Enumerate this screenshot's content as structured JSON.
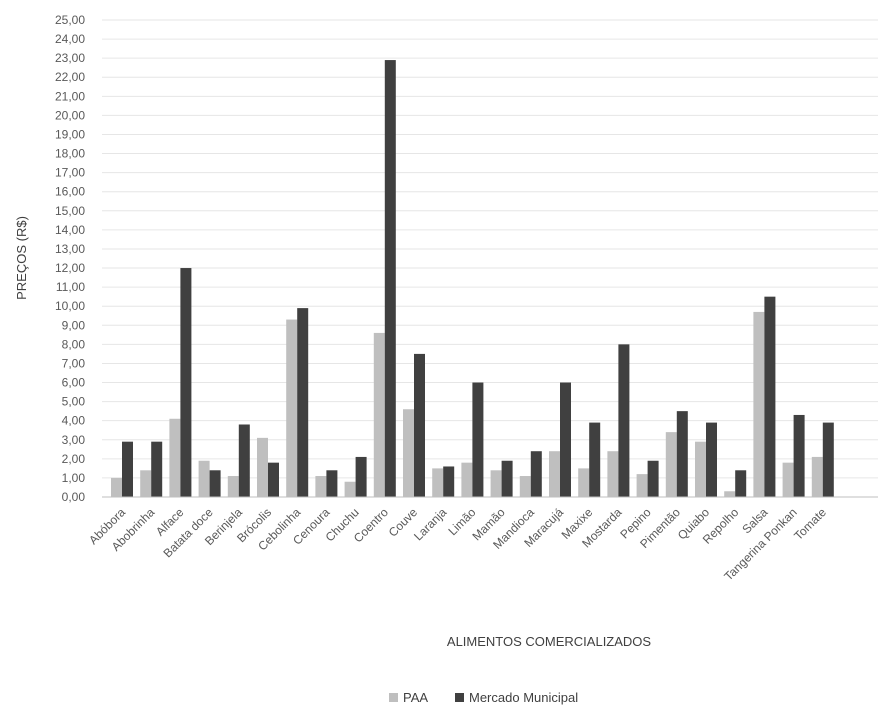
{
  "chart_data": {
    "type": "bar",
    "title": "",
    "xlabel": "ALIMENTOS COMERCIALIZADOS",
    "ylabel": "PREÇOS (R$)",
    "ylim": [
      0,
      25
    ],
    "ytick_step": 1,
    "ytick_labels": [
      "0,00",
      "1,00",
      "2,00",
      "3,00",
      "4,00",
      "5,00",
      "6,00",
      "7,00",
      "8,00",
      "9,00",
      "10,00",
      "11,00",
      "12,00",
      "13,00",
      "14,00",
      "15,00",
      "16,00",
      "17,00",
      "18,00",
      "19,00",
      "20,00",
      "21,00",
      "22,00",
      "23,00",
      "24,00",
      "25,00"
    ],
    "grid": true,
    "legend_position": "bottom",
    "categories": [
      "Abóbora",
      "Abobrinha",
      "Alface",
      "Batata doce",
      "Berinjela",
      "Brócolis",
      "Cebolinha",
      "Cenoura",
      "Chuchu",
      "Coentro",
      "Couve",
      "Laranja",
      "Limão",
      "Mamão",
      "Mandioca",
      "Maracujá",
      "Maxixe",
      "Mostarda",
      "Pepino",
      "Pimentão",
      "Quiabo",
      "Repolho",
      "Salsa",
      "Tangerina Ponkan",
      "Tomate"
    ],
    "series": [
      {
        "name": "PAA",
        "color": "#bfbfbf",
        "values": [
          1.0,
          1.4,
          4.1,
          1.9,
          1.1,
          3.1,
          9.3,
          1.1,
          0.8,
          8.6,
          4.6,
          1.5,
          1.8,
          1.4,
          1.1,
          2.4,
          1.5,
          2.4,
          1.2,
          3.4,
          2.9,
          0.3,
          9.7,
          1.8,
          2.1
        ]
      },
      {
        "name": "Mercado Municipal",
        "color": "#404040",
        "values": [
          2.9,
          2.9,
          12.0,
          1.4,
          3.8,
          1.8,
          9.9,
          1.4,
          2.1,
          22.9,
          7.5,
          1.6,
          6.0,
          1.9,
          2.4,
          6.0,
          3.9,
          8.0,
          1.9,
          4.5,
          3.9,
          1.4,
          10.5,
          4.3,
          3.9
        ]
      }
    ]
  }
}
